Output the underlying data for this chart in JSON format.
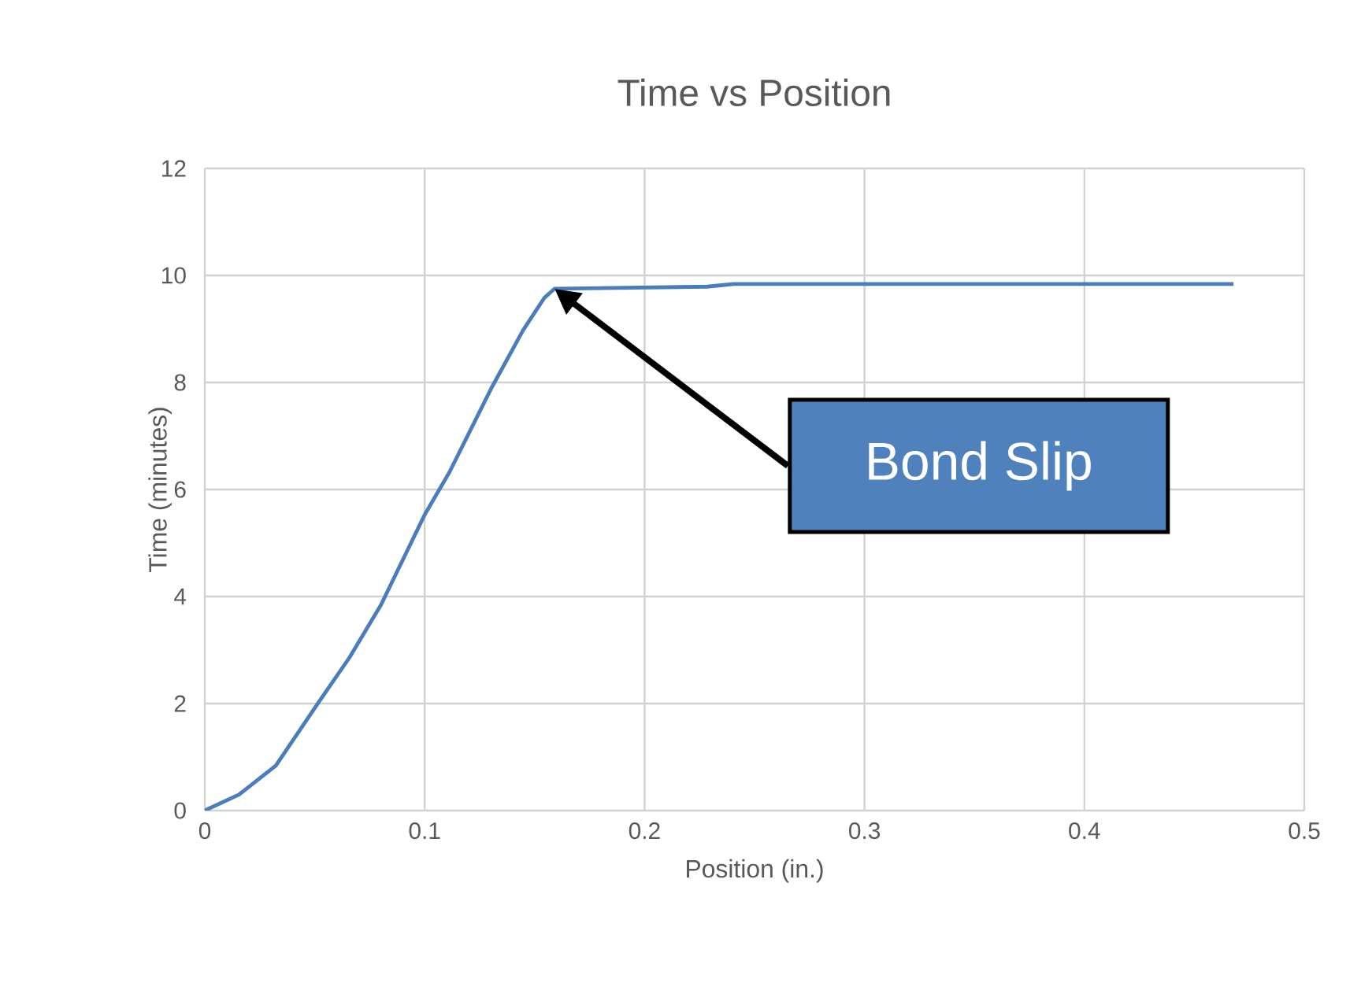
{
  "chart_data": {
    "type": "line",
    "title": "Time vs Position",
    "xlabel": "Position (in.)",
    "ylabel": "Time (minutes)",
    "x": [
      0,
      0.0156,
      0.0323,
      0.0514,
      0.0658,
      0.0802,
      0.1,
      0.1112,
      0.1304,
      0.1448,
      0.1544,
      0.159,
      0.2285,
      0.2405,
      0.4678
    ],
    "values": [
      0,
      0.3,
      0.84,
      2.0,
      2.86,
      3.85,
      5.53,
      6.32,
      7.9,
      8.98,
      9.58,
      9.75,
      9.79,
      9.84,
      9.84
    ],
    "color": "#4a7ebb",
    "xlim": [
      0,
      0.5
    ],
    "ylim": [
      0,
      12
    ],
    "xticks": [
      0,
      0.1,
      0.2,
      0.3,
      0.4,
      0.5
    ],
    "yticks": [
      0,
      2,
      4,
      6,
      8,
      10,
      12
    ],
    "grid": true,
    "annotations": [
      "Bond Slip"
    ]
  }
}
